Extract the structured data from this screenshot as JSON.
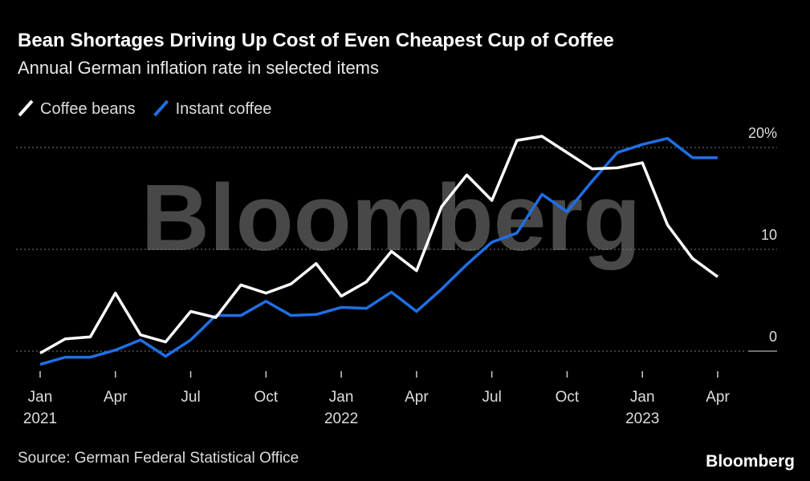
{
  "chart_data": {
    "type": "line",
    "title": "Bean Shortages Driving Up Cost of Even Cheapest Cup of Coffee",
    "subtitle": "Annual German inflation rate in selected items",
    "categories": [
      "Jan 2021",
      null,
      null,
      "Apr",
      null,
      null,
      "Jul",
      null,
      null,
      "Oct",
      null,
      null,
      "Jan 2022",
      null,
      null,
      "Apr",
      null,
      null,
      "Jul",
      null,
      null,
      "Oct",
      null,
      null,
      "Jan 2023",
      null,
      null,
      "Apr"
    ],
    "series": [
      {
        "name": "Coffee beans",
        "color": "#ffffff",
        "values": [
          -0.2,
          1.2,
          1.4,
          5.7,
          1.6,
          0.9,
          3.9,
          3.3,
          6.5,
          5.7,
          6.6,
          8.6,
          5.4,
          6.8,
          9.8,
          7.9,
          14.2,
          17.3,
          14.8,
          20.7,
          21.1,
          19.5,
          17.9,
          18.0,
          18.5,
          12.4,
          9.1,
          7.3
        ]
      },
      {
        "name": "Instant coffee",
        "color": "#1f6fe5",
        "values": [
          -1.3,
          -0.6,
          -0.6,
          0.1,
          1.1,
          -0.5,
          1.1,
          3.5,
          3.5,
          4.9,
          3.5,
          3.6,
          4.3,
          4.2,
          5.8,
          3.9,
          6.1,
          8.5,
          10.7,
          11.6,
          15.4,
          13.7,
          16.7,
          19.5,
          20.3,
          20.9,
          19.0,
          19.0
        ]
      }
    ],
    "ylim": [
      -2,
      22
    ],
    "yticks": [
      0,
      10,
      {
        "value": 20,
        "label": "20%"
      }
    ],
    "grid": true,
    "watermark": "Bloomberg",
    "source": "Source: German Federal Statistical Office",
    "brand": "Bloomberg"
  }
}
